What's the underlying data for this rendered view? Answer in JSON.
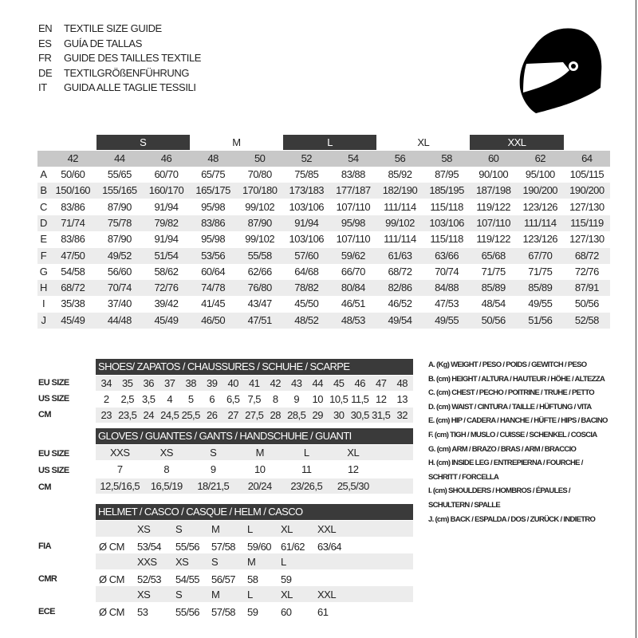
{
  "titles": [
    {
      "code": "EN",
      "text": "TEXTILE SIZE GUIDE"
    },
    {
      "code": "ES",
      "text": "GUÍA DE TALLAS"
    },
    {
      "code": "FR",
      "text": "GUIDE DES TAILLES TEXTILE"
    },
    {
      "code": "DE",
      "text": "TEXTILGRÖßENFÜHRUNG"
    },
    {
      "code": "IT",
      "text": "GUIDA ALLE TAGLIE TESSILI"
    }
  ],
  "icon": "motorcycle-helmet-icon",
  "textile": {
    "groups": [
      {
        "label": "S",
        "dark": true,
        "from": 1
      },
      {
        "label": "M",
        "dark": false,
        "from": 3
      },
      {
        "label": "L",
        "dark": true,
        "from": 5
      },
      {
        "label": "XL",
        "dark": false,
        "from": 7
      },
      {
        "label": "XXL",
        "dark": true,
        "from": 9
      }
    ],
    "sizes": [
      "42",
      "44",
      "46",
      "48",
      "50",
      "52",
      "54",
      "56",
      "58",
      "60",
      "62",
      "64"
    ],
    "rows": [
      {
        "label": "A",
        "values": [
          "50/60",
          "55/65",
          "60/70",
          "65/75",
          "70/80",
          "75/85",
          "83/88",
          "85/92",
          "87/95",
          "90/100",
          "95/100",
          "105/115"
        ]
      },
      {
        "label": "B",
        "values": [
          "150/160",
          "155/165",
          "160/170",
          "165/175",
          "170/180",
          "173/183",
          "177/187",
          "182/190",
          "185/195",
          "187/198",
          "190/200",
          "190/200"
        ]
      },
      {
        "label": "C",
        "values": [
          "83/86",
          "87/90",
          "91/94",
          "95/98",
          "99/102",
          "103/106",
          "107/110",
          "111/114",
          "115/118",
          "119/122",
          "123/126",
          "127/130"
        ]
      },
      {
        "label": "D",
        "values": [
          "71/74",
          "75/78",
          "79/82",
          "83/86",
          "87/90",
          "91/94",
          "95/98",
          "99/102",
          "103/106",
          "107/110",
          "111/114",
          "115/119"
        ]
      },
      {
        "label": "E",
        "values": [
          "83/86",
          "87/90",
          "91/94",
          "95/98",
          "99/102",
          "103/106",
          "107/110",
          "111/114",
          "115/118",
          "119/122",
          "123/126",
          "127/130"
        ]
      },
      {
        "label": "F",
        "values": [
          "47/50",
          "49/52",
          "51/54",
          "53/56",
          "55/58",
          "57/60",
          "59/62",
          "61/63",
          "63/66",
          "65/68",
          "67/70",
          "68/72"
        ]
      },
      {
        "label": "G",
        "values": [
          "54/58",
          "56/60",
          "58/62",
          "60/64",
          "62/66",
          "64/68",
          "66/70",
          "68/72",
          "70/74",
          "71/75",
          "71/75",
          "72/76"
        ]
      },
      {
        "label": "H",
        "values": [
          "68/72",
          "70/74",
          "72/76",
          "74/78",
          "76/80",
          "78/82",
          "80/84",
          "82/86",
          "84/88",
          "85/89",
          "85/89",
          "87/91"
        ]
      },
      {
        "label": "I",
        "values": [
          "35/38",
          "37/40",
          "39/42",
          "41/45",
          "43/47",
          "45/50",
          "46/51",
          "46/52",
          "47/53",
          "48/54",
          "49/55",
          "50/56"
        ]
      },
      {
        "label": "J",
        "values": [
          "45/49",
          "44/48",
          "45/49",
          "46/50",
          "47/51",
          "48/52",
          "48/53",
          "49/54",
          "49/55",
          "50/56",
          "51/56",
          "52/58"
        ]
      }
    ]
  },
  "shoes": {
    "title": "SHOES/ ZAPATOS / CHAUSSURES / SCHUHE / SCARPE",
    "rows": [
      {
        "label": "EU SIZE",
        "values": [
          "34",
          "35",
          "36",
          "37",
          "38",
          "39",
          "40",
          "41",
          "42",
          "43",
          "44",
          "45",
          "46",
          "47",
          "48"
        ]
      },
      {
        "label": "US SIZE",
        "values": [
          "2",
          "2,5",
          "3,5",
          "4",
          "5",
          "6",
          "6,5",
          "7,5",
          "8",
          "9",
          "10",
          "10,5",
          "11,5",
          "12",
          "13"
        ]
      },
      {
        "label": "CM",
        "values": [
          "23",
          "23,5",
          "24",
          "24,5",
          "25,5",
          "26",
          "27",
          "27,5",
          "28",
          "28,5",
          "29",
          "30",
          "30,5",
          "31,5",
          "32"
        ]
      }
    ]
  },
  "gloves": {
    "title": "GLOVES / GUANTES / GANTS / HANDSCHUHE / GUANTI",
    "rows": [
      {
        "label": "EU SIZE",
        "values": [
          "XXS",
          "XS",
          "S",
          "M",
          "L",
          "XL"
        ]
      },
      {
        "label": "US SIZE",
        "values": [
          "7",
          "8",
          "9",
          "10",
          "11",
          "12"
        ]
      },
      {
        "label": "CM",
        "values": [
          "12,5/16,5",
          "16,5/19",
          "18/21,5",
          "20/24",
          "23/26,5",
          "25,5/30"
        ]
      }
    ]
  },
  "helmet": {
    "title": "HELMET / CASCO / CASQUE / HELM / CASCO",
    "unit": "Ø CM",
    "standards": [
      {
        "label": "FIA",
        "sizes": [
          "XS",
          "S",
          "M",
          "L",
          "XL",
          "XXL"
        ],
        "values": [
          "53/54",
          "55/56",
          "57/58",
          "59/60",
          "61/62",
          "63/64"
        ]
      },
      {
        "label": "CMR",
        "sizes": [
          "XXS",
          "XS",
          "S",
          "M",
          "L"
        ],
        "values": [
          "52/53",
          "54/55",
          "56/57",
          "58",
          "59"
        ]
      },
      {
        "label": "ECE",
        "sizes": [
          "XS",
          "S",
          "M",
          "L",
          "XL",
          "XXL"
        ],
        "values": [
          "53",
          "55/56",
          "57/58",
          "59",
          "60",
          "61"
        ]
      }
    ]
  },
  "legend": [
    "A. (Kg) WEIGHT / PESO / POIDS / GEWITCH / PESO",
    "B. (cm) HEIGHT / ALTURA / HAUTEUR / HÖHE / ALTEZZA",
    "C. (cm) CHEST / PECHO / POITRINE / TRUHE / PETTO",
    "D. (cm) WAIST / CINTURA / TAILLE / HÜFTUNG / VITA",
    "E. (cm) HIP / CADERA / HANCHE / HÜFTE / HIPS /  BACINO",
    "F.  (cm) TIGH / MUSLO / CUISSE / SCHENKEL / COSCIA",
    "G. (cm) ARM  / BRAZO / BRAS / ARM / BRACCIO",
    "H. (cm) INSIDE LEG / ENTREPIERNA / FOURCHE /",
    "SCHRITT / FORCELLA",
    "I.  (cm) SHOULDERS / HOMBROS / ÉPAULES /",
    "SCHULTERN / SPALLE",
    "J. (cm) BACK / ESPALDA / DOS / ZURÜCK / INDIETRO"
  ]
}
